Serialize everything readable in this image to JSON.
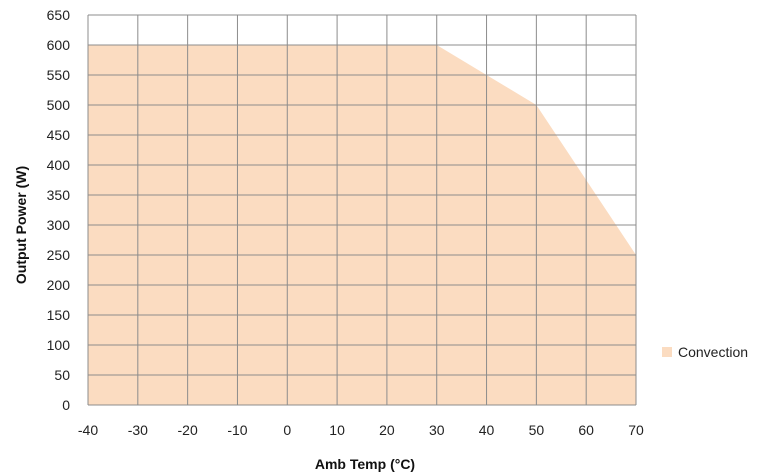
{
  "chart_data": {
    "type": "area",
    "xlabel": "Amb Temp (°C)",
    "ylabel": "Output Power (W)",
    "xlim": [
      -40,
      70
    ],
    "ylim": [
      0,
      650
    ],
    "x_ticks": [
      -40,
      -30,
      -20,
      -10,
      0,
      10,
      20,
      30,
      40,
      50,
      60,
      70
    ],
    "y_ticks": [
      0,
      50,
      100,
      150,
      200,
      250,
      300,
      350,
      400,
      450,
      500,
      550,
      600,
      650
    ],
    "grid": true,
    "legend": "right",
    "series": [
      {
        "name": "Convection",
        "color": "#fbdcc1",
        "x": [
          -40,
          30,
          40,
          50,
          70
        ],
        "y": [
          600,
          600,
          550,
          500,
          250
        ]
      }
    ]
  }
}
